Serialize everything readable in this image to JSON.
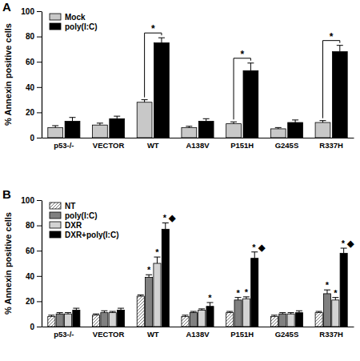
{
  "chart_data": [
    {
      "type": "bar",
      "title": "A",
      "y_label": "% Annexin positive cells",
      "categories": [
        "p53-/-",
        "VECTOR",
        "WT",
        "A138V",
        "P151H",
        "G245S",
        "R337H"
      ],
      "series": [
        {
          "name": "Mock",
          "color": "#c8c8c8",
          "values": [
            8,
            10,
            28,
            8,
            11,
            7,
            12
          ],
          "errors": [
            1.5,
            1.5,
            2,
            1,
            1.5,
            1,
            1.5
          ]
        },
        {
          "name": "poly(I:C)",
          "color": "#000000",
          "values": [
            13,
            15,
            75,
            13,
            53,
            12,
            68
          ],
          "errors": [
            3,
            2,
            4,
            2,
            6,
            2,
            5
          ]
        }
      ],
      "brackets": [
        {
          "category": "WT",
          "text": "*"
        },
        {
          "category": "P151H",
          "text": "*"
        },
        {
          "category": "R337H",
          "text": "*"
        }
      ],
      "ylim": [
        0,
        100
      ],
      "yticks": [
        0,
        20,
        40,
        60,
        80,
        100
      ],
      "legend": "top-left"
    },
    {
      "type": "bar",
      "title": "B",
      "y_label": "% Annexin positive cells",
      "categories": [
        "p53-/-",
        "VECTOR",
        "WT",
        "A138V",
        "P151H",
        "G245S",
        "R337H"
      ],
      "series": [
        {
          "name": "NT",
          "color": "#ffffff",
          "values": [
            8,
            9,
            24,
            8,
            11,
            8,
            11
          ],
          "errors": [
            1,
            1,
            1,
            1,
            1,
            1,
            1
          ],
          "annotations": [
            null,
            null,
            null,
            null,
            null,
            null,
            null
          ]
        },
        {
          "name": "poly(I:C)",
          "color": "#808080",
          "values": [
            10,
            11,
            39,
            11,
            21,
            10,
            26
          ],
          "errors": [
            1,
            1.5,
            2,
            1,
            2,
            1,
            3
          ],
          "annotations": [
            null,
            null,
            "*",
            null,
            "*",
            null,
            "*"
          ]
        },
        {
          "name": "DXR",
          "color": "#d3d3d3",
          "values": [
            10,
            11,
            50,
            13,
            22,
            10,
            21
          ],
          "errors": [
            1,
            1,
            5,
            1,
            1.5,
            1,
            2
          ],
          "annotations": [
            null,
            null,
            "*",
            null,
            "*",
            null,
            "*"
          ]
        },
        {
          "name": "DXR+poly(I:C)",
          "color": "#000000",
          "values": [
            13,
            13,
            77,
            16,
            54,
            11,
            58
          ],
          "errors": [
            1.5,
            1.5,
            5,
            3,
            5,
            1.5,
            4
          ],
          "annotations": [
            null,
            null,
            "* ◆",
            "*",
            "* ◆",
            null,
            "* ◆"
          ]
        }
      ],
      "ylim": [
        0,
        100
      ],
      "yticks": [
        0,
        20,
        40,
        60,
        80,
        100
      ],
      "legend": "top-left"
    }
  ]
}
